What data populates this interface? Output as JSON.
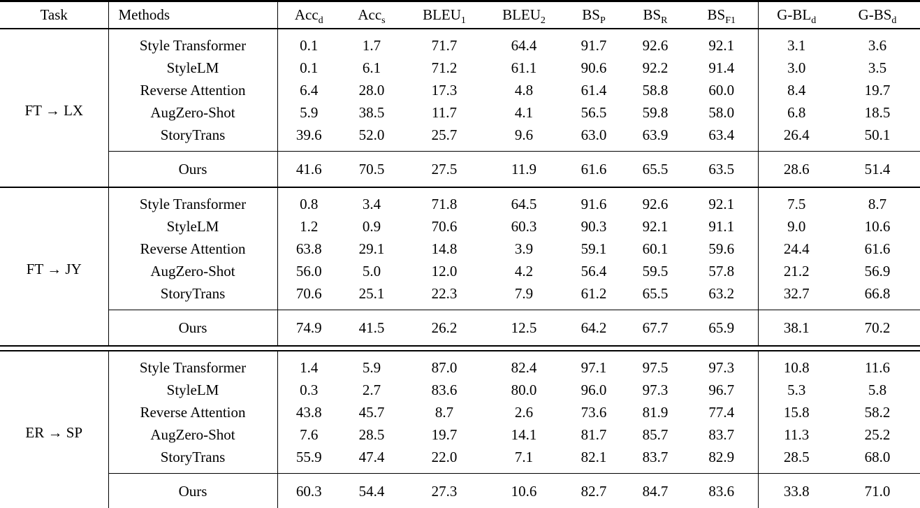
{
  "table": {
    "columns": [
      {
        "base": "Task",
        "sub": ""
      },
      {
        "base": "Methods",
        "sub": ""
      },
      {
        "base": "Acc",
        "sub": "d"
      },
      {
        "base": "Acc",
        "sub": "s"
      },
      {
        "base": "BLEU",
        "sub": "1"
      },
      {
        "base": "BLEU",
        "sub": "2"
      },
      {
        "base": "BS",
        "sub": "P"
      },
      {
        "base": "BS",
        "sub": "R"
      },
      {
        "base": "BS",
        "sub": "F1"
      },
      {
        "base": "G-BL",
        "sub": "d"
      },
      {
        "base": "G-BS",
        "sub": "d"
      }
    ],
    "groups": [
      {
        "task": "FT → LX",
        "rows": [
          {
            "method": "Style Transformer",
            "values": [
              "0.1",
              "1.7",
              "71.7",
              "64.4",
              "91.7",
              "92.6",
              "92.1",
              "3.1",
              "3.6"
            ]
          },
          {
            "method": "StyleLM",
            "values": [
              "0.1",
              "6.1",
              "71.2",
              "61.1",
              "90.6",
              "92.2",
              "91.4",
              "3.0",
              "3.5"
            ]
          },
          {
            "method": "Reverse Attention",
            "values": [
              "6.4",
              "28.0",
              "17.3",
              "4.8",
              "61.4",
              "58.8",
              "60.0",
              "8.4",
              "19.7"
            ]
          },
          {
            "method": "AugZero-Shot",
            "values": [
              "5.9",
              "38.5",
              "11.7",
              "4.1",
              "56.5",
              "59.8",
              "58.0",
              "6.8",
              "18.5"
            ]
          },
          {
            "method": "StoryTrans",
            "values": [
              "39.6",
              "52.0",
              "25.7",
              "9.6",
              "63.0",
              "63.9",
              "63.4",
              "26.4",
              "50.1"
            ]
          }
        ],
        "ours": {
          "method": "Ours",
          "values": [
            "41.6",
            "70.5",
            "27.5",
            "11.9",
            "61.6",
            "65.5",
            "63.5",
            "28.6",
            "51.4"
          ],
          "bold_from_index": 7
        },
        "separator_after": "single"
      },
      {
        "task": "FT → JY",
        "rows": [
          {
            "method": "Style Transformer",
            "values": [
              "0.8",
              "3.4",
              "71.8",
              "64.5",
              "91.6",
              "92.6",
              "92.1",
              "7.5",
              "8.7"
            ]
          },
          {
            "method": "StyleLM",
            "values": [
              "1.2",
              "0.9",
              "70.6",
              "60.3",
              "90.3",
              "92.1",
              "91.1",
              "9.0",
              "10.6"
            ]
          },
          {
            "method": "Reverse Attention",
            "values": [
              "63.8",
              "29.1",
              "14.8",
              "3.9",
              "59.1",
              "60.1",
              "59.6",
              "24.4",
              "61.6"
            ]
          },
          {
            "method": "AugZero-Shot",
            "values": [
              "56.0",
              "5.0",
              "12.0",
              "4.2",
              "56.4",
              "59.5",
              "57.8",
              "21.2",
              "56.9"
            ]
          },
          {
            "method": "StoryTrans",
            "values": [
              "70.6",
              "25.1",
              "22.3",
              "7.9",
              "61.2",
              "65.5",
              "63.2",
              "32.7",
              "66.8"
            ]
          }
        ],
        "ours": {
          "method": "Ours",
          "values": [
            "74.9",
            "41.5",
            "26.2",
            "12.5",
            "64.2",
            "67.7",
            "65.9",
            "38.1",
            "70.2"
          ],
          "bold_from_index": 7
        },
        "separator_after": "double"
      },
      {
        "task": "ER → SP",
        "rows": [
          {
            "method": "Style Transformer",
            "values": [
              "1.4",
              "5.9",
              "87.0",
              "82.4",
              "97.1",
              "97.5",
              "97.3",
              "10.8",
              "11.6"
            ]
          },
          {
            "method": "StyleLM",
            "values": [
              "0.3",
              "2.7",
              "83.6",
              "80.0",
              "96.0",
              "97.3",
              "96.7",
              "5.3",
              "5.8"
            ]
          },
          {
            "method": "Reverse Attention",
            "values": [
              "43.8",
              "45.7",
              "8.7",
              "2.6",
              "73.6",
              "81.9",
              "77.4",
              "15.8",
              "58.2"
            ]
          },
          {
            "method": "AugZero-Shot",
            "values": [
              "7.6",
              "28.5",
              "19.7",
              "14.1",
              "81.7",
              "85.7",
              "83.7",
              "11.3",
              "25.2"
            ]
          },
          {
            "method": "StoryTrans",
            "values": [
              "55.9",
              "47.4",
              "22.0",
              "7.1",
              "82.1",
              "83.7",
              "82.9",
              "28.5",
              "68.0"
            ]
          }
        ],
        "ours": {
          "method": "Ours",
          "values": [
            "60.3",
            "54.4",
            "27.3",
            "10.6",
            "82.7",
            "84.7",
            "83.6",
            "33.8",
            "71.0"
          ],
          "bold_from_index": 7
        },
        "separator_after": "none"
      }
    ]
  }
}
